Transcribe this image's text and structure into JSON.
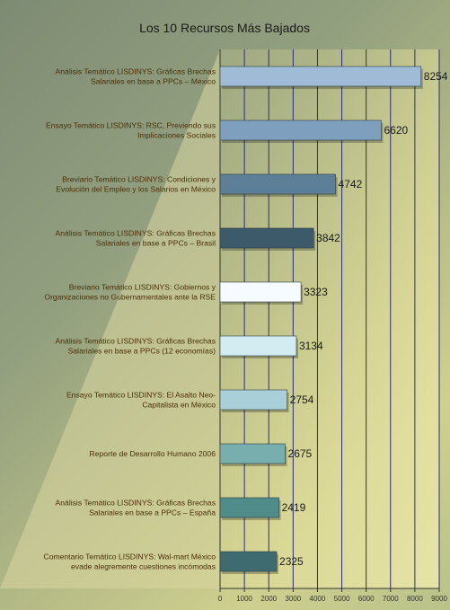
{
  "chart_data": {
    "type": "bar",
    "orientation": "horizontal",
    "title": "Los 10 Recursos Más Bajados",
    "categories": [
      [
        "Análisis Temático LISDINYS: Gráficas Brechas",
        "Salariales en base a PPCs – México"
      ],
      [
        "Ensayo Temático LISDINYS: RSC, Previendo sus",
        "Implicaciones Sociales"
      ],
      [
        "Breviario Temático LISDINYS: Condiciones y",
        "Evolución del Empleo y los Salarios en México"
      ],
      [
        "Análisis Temático LISDINYS: Gráficas Brechas",
        "Salariales en base a PPCs – Brasil"
      ],
      [
        "Breviario Temático LISDINYS:  Gobiernos y",
        "Organizaciones no Gubernamentales ante la RSE"
      ],
      [
        "Análisis Temático LISDINYS: Gráficas Brechas",
        "Salariales en base a PPCs (12 economías)"
      ],
      [
        "Ensayo Temático LISDINYS: El Asalto Neo-",
        "Capitalista en México"
      ],
      [
        "Reporte de Desarrollo Humano 2006"
      ],
      [
        "Análisis Temático LISDINYS: Gráficas Brechas",
        "Salariales en base a PPCs – España"
      ],
      [
        "Comentario Temático LISDINYS: Wal-mart México",
        "evade alegremente cuestiones incómodas"
      ]
    ],
    "values": [
      8254,
      6620,
      4742,
      3842,
      3323,
      3134,
      2754,
      2675,
      2419,
      2325
    ],
    "value_labels": [
      "8254",
      "6620",
      "4742",
      "3842",
      "3323",
      "3134",
      "2754",
      "2675",
      "2419",
      "2325"
    ],
    "bar_colors": [
      "#9fbbd6",
      "#7f9fbf",
      "#5d7f97",
      "#3c5a6a",
      "#f6fbff",
      "#d3ecf2",
      "#a9d0d8",
      "#79aeae",
      "#508c8a",
      "#3e6b6f"
    ],
    "xlim": [
      0,
      9000
    ],
    "xticks": [
      0,
      1000,
      2000,
      3000,
      4000,
      5000,
      6000,
      7000,
      8000,
      9000
    ],
    "grid": true,
    "legend": "none"
  }
}
